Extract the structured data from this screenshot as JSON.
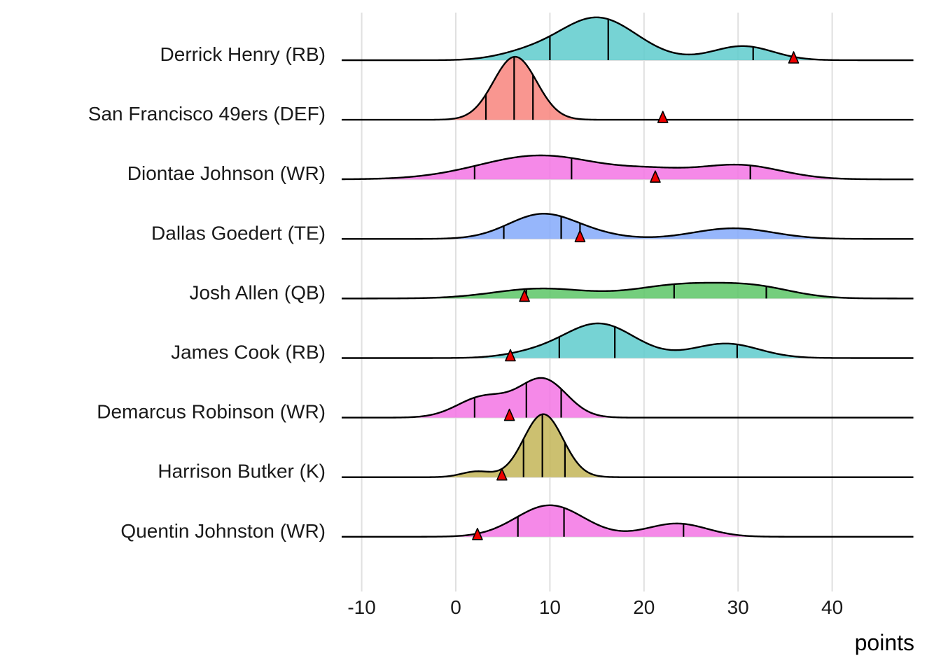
{
  "chart_data": {
    "type": "ridgeline",
    "title": "",
    "xlabel": "points",
    "ylabel": "",
    "xlim": [
      -12,
      48
    ],
    "xticks": [
      -10,
      0,
      10,
      20,
      30,
      40
    ],
    "xtick_labels": [
      "-10",
      "0",
      "10",
      "20",
      "30",
      "40"
    ],
    "grid": true,
    "legend": "none",
    "marker_description": "red triangle = actual points scored; vertical lines = 25th/50th/75th percentile of projection",
    "series": [
      {
        "name": "Derrick Henry (RB)",
        "color": "#5ecbcc",
        "components": [
          [
            15,
            4.2,
            1.0
          ],
          [
            30.5,
            3.2,
            0.33
          ],
          [
            7,
            3.0,
            0.12
          ]
        ],
        "quantiles": [
          10,
          16.2,
          31.6
        ],
        "actual": 35.9
      },
      {
        "name": "San Francisco 49ers (DEF)",
        "color": "#f8847c",
        "components": [
          [
            6.3,
            2.3,
            1.0
          ]
        ],
        "quantiles": [
          3.2,
          6.2,
          8.2
        ],
        "actual": 22
      },
      {
        "name": "Diontae Johnson (WR)",
        "color": "#f374e4",
        "components": [
          [
            9,
            6.5,
            1.0
          ],
          [
            30,
            4.5,
            0.6
          ],
          [
            21,
            3.5,
            0.25
          ]
        ],
        "quantiles": [
          2,
          12.3,
          31.3
        ],
        "actual": 21.2
      },
      {
        "name": "Dallas Goedert (TE)",
        "color": "#84a9fa",
        "components": [
          [
            9.2,
            3.6,
            1.0
          ],
          [
            29.5,
            4.2,
            0.43
          ],
          [
            15,
            3,
            0.12
          ]
        ],
        "quantiles": [
          5.1,
          11.2,
          13.2
        ],
        "actual": 13.2
      },
      {
        "name": "Josh Allen (QB)",
        "color": "#5cc666",
        "components": [
          [
            9,
            5,
            0.55
          ],
          [
            24,
            5,
            0.75
          ],
          [
            32,
            4,
            0.55
          ]
        ],
        "quantiles": [
          7.5,
          23.2,
          33
        ],
        "actual": 7.3
      },
      {
        "name": "James Cook (RB)",
        "color": "#5ecbcc",
        "components": [
          [
            15.2,
            3.8,
            1.0
          ],
          [
            28.7,
            3.5,
            0.42
          ],
          [
            8,
            3,
            0.12
          ]
        ],
        "quantiles": [
          11,
          16.9,
          29.9
        ],
        "actual": 5.8
      },
      {
        "name": "Demarcus Robinson (WR)",
        "color": "#f374e4",
        "components": [
          [
            9.3,
            2.5,
            1.0
          ],
          [
            3,
            2.8,
            0.55
          ]
        ],
        "quantiles": [
          2,
          7.5,
          11.2
        ],
        "actual": 5.7
      },
      {
        "name": "Harrison Butker (K)",
        "color": "#c3b557",
        "components": [
          [
            9.3,
            2.1,
            1.0
          ],
          [
            2.2,
            1.6,
            0.09
          ]
        ],
        "quantiles": [
          7.2,
          9.2,
          11.6
        ],
        "actual": 4.9
      },
      {
        "name": "Quentin Johnston (WR)",
        "color": "#f374e4",
        "components": [
          [
            10,
            3.6,
            1.0
          ],
          [
            23.5,
            3.2,
            0.42
          ]
        ],
        "quantiles": [
          6.6,
          11.5,
          24.2
        ],
        "actual": 2.3
      }
    ]
  }
}
